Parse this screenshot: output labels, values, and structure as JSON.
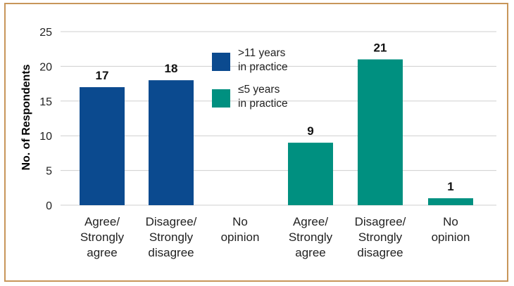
{
  "chart_data": {
    "type": "bar",
    "title": "",
    "xlabel": "",
    "ylabel": "No. of Respondents",
    "ylim": [
      0,
      25
    ],
    "yticks": [
      0,
      5,
      10,
      15,
      20,
      25
    ],
    "grid": true,
    "legend_position": "top-center",
    "groups": [
      {
        "series": ">11 years in practice",
        "legend_lines": [
          ">11 years",
          "in practice"
        ],
        "color": "#0b4a8f",
        "bars": [
          {
            "label_lines": [
              "Agree/",
              "Strongly",
              "agree"
            ],
            "value": 17,
            "value_label": "17"
          },
          {
            "label_lines": [
              "Disagree/",
              "Strongly",
              "disagree"
            ],
            "value": 18,
            "value_label": "18"
          },
          {
            "label_lines": [
              "No",
              "opinion"
            ],
            "value": 0,
            "value_label": ""
          }
        ]
      },
      {
        "series": "≤5 years in practice",
        "legend_lines": [
          "≤5 years",
          "in practice"
        ],
        "color": "#009080",
        "bars": [
          {
            "label_lines": [
              "Agree/",
              "Strongly",
              "agree"
            ],
            "value": 9,
            "value_label": "9"
          },
          {
            "label_lines": [
              "Disagree/",
              "Strongly",
              "disagree"
            ],
            "value": 21,
            "value_label": "21"
          },
          {
            "label_lines": [
              "No",
              "opinion"
            ],
            "value": 1,
            "value_label": "1"
          }
        ]
      }
    ]
  }
}
